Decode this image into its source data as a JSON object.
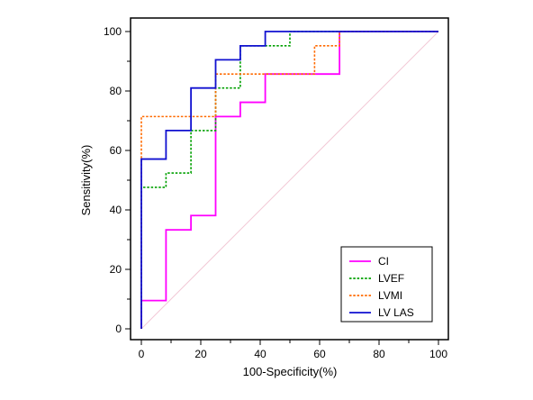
{
  "chart_data": {
    "type": "line",
    "title": "",
    "xlabel": "100-Specificity(%)",
    "ylabel": "Sensitivity(%)",
    "xlim": [
      0,
      100
    ],
    "ylim": [
      0,
      100
    ],
    "x_ticks": [
      0,
      20,
      40,
      60,
      80,
      100
    ],
    "y_ticks": [
      0,
      20,
      40,
      60,
      80,
      100
    ],
    "grid": false,
    "legend_position": "bottom-right",
    "reference_line": {
      "points": [
        [
          0,
          0
        ],
        [
          100,
          100
        ]
      ],
      "color": "#f2c9d6"
    },
    "series": [
      {
        "name": "CI",
        "color": "#ff00ff",
        "style": "solid",
        "points": [
          [
            0,
            0
          ],
          [
            0,
            9.5
          ],
          [
            8.3,
            9.5
          ],
          [
            8.3,
            33.3
          ],
          [
            16.7,
            33.3
          ],
          [
            16.7,
            38.1
          ],
          [
            25,
            38.1
          ],
          [
            25,
            71.4
          ],
          [
            33.3,
            71.4
          ],
          [
            33.3,
            76.2
          ],
          [
            41.7,
            76.2
          ],
          [
            41.7,
            85.7
          ],
          [
            66.7,
            85.7
          ],
          [
            66.7,
            100
          ],
          [
            100,
            100
          ]
        ]
      },
      {
        "name": "LVEF",
        "color": "#00a000",
        "style": "dotted",
        "points": [
          [
            0,
            0
          ],
          [
            0,
            47.6
          ],
          [
            8.3,
            47.6
          ],
          [
            8.3,
            52.4
          ],
          [
            16.7,
            52.4
          ],
          [
            16.7,
            66.7
          ],
          [
            25,
            66.7
          ],
          [
            25,
            81
          ],
          [
            33.3,
            81
          ],
          [
            33.3,
            95.2
          ],
          [
            50,
            95.2
          ],
          [
            50,
            100
          ],
          [
            100,
            100
          ]
        ]
      },
      {
        "name": "LVMI",
        "color": "#ff6a00",
        "style": "dotted",
        "points": [
          [
            0,
            0
          ],
          [
            0,
            71.4
          ],
          [
            25,
            71.4
          ],
          [
            25,
            85.7
          ],
          [
            58.3,
            85.7
          ],
          [
            58.3,
            95.2
          ],
          [
            66.7,
            95.2
          ],
          [
            66.7,
            100
          ],
          [
            100,
            100
          ]
        ]
      },
      {
        "name": "LV LAS",
        "color": "#1010d0",
        "style": "solid",
        "points": [
          [
            0,
            0
          ],
          [
            0,
            57.1
          ],
          [
            8.3,
            57.1
          ],
          [
            8.3,
            66.7
          ],
          [
            16.7,
            66.7
          ],
          [
            16.7,
            81
          ],
          [
            25,
            81
          ],
          [
            25,
            90.5
          ],
          [
            33.3,
            90.5
          ],
          [
            33.3,
            95.2
          ],
          [
            41.7,
            95.2
          ],
          [
            41.7,
            100
          ],
          [
            100,
            100
          ]
        ]
      }
    ]
  }
}
